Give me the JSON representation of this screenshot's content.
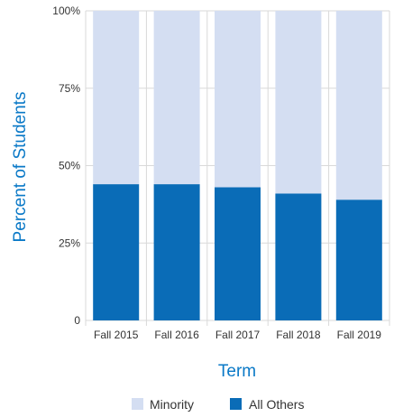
{
  "chart_data": {
    "type": "bar",
    "stacked": true,
    "percent_stacked": true,
    "categories": [
      "Fall 2015",
      "Fall 2016",
      "Fall 2017",
      "Fall 2018",
      "Fall 2019"
    ],
    "series": [
      {
        "name": "All Others",
        "values": [
          44,
          44,
          43,
          41,
          39
        ],
        "color": "#0a6cb7"
      },
      {
        "name": "Minority",
        "values": [
          56,
          56,
          57,
          59,
          61
        ],
        "color": "#d4def2"
      }
    ],
    "xlabel": "Term",
    "ylabel": "Percent of Students",
    "ylim": [
      0,
      100
    ],
    "yticks": [
      0,
      25,
      50,
      75,
      100
    ],
    "ytick_labels": [
      "0",
      "25%",
      "50%",
      "75%",
      "100%"
    ],
    "legend": {
      "position": "bottom",
      "entries": [
        "Minority",
        "All Others"
      ]
    },
    "grid": true,
    "axis_title_color": "#0a79c7",
    "grid_color": "#d9d9d9"
  }
}
